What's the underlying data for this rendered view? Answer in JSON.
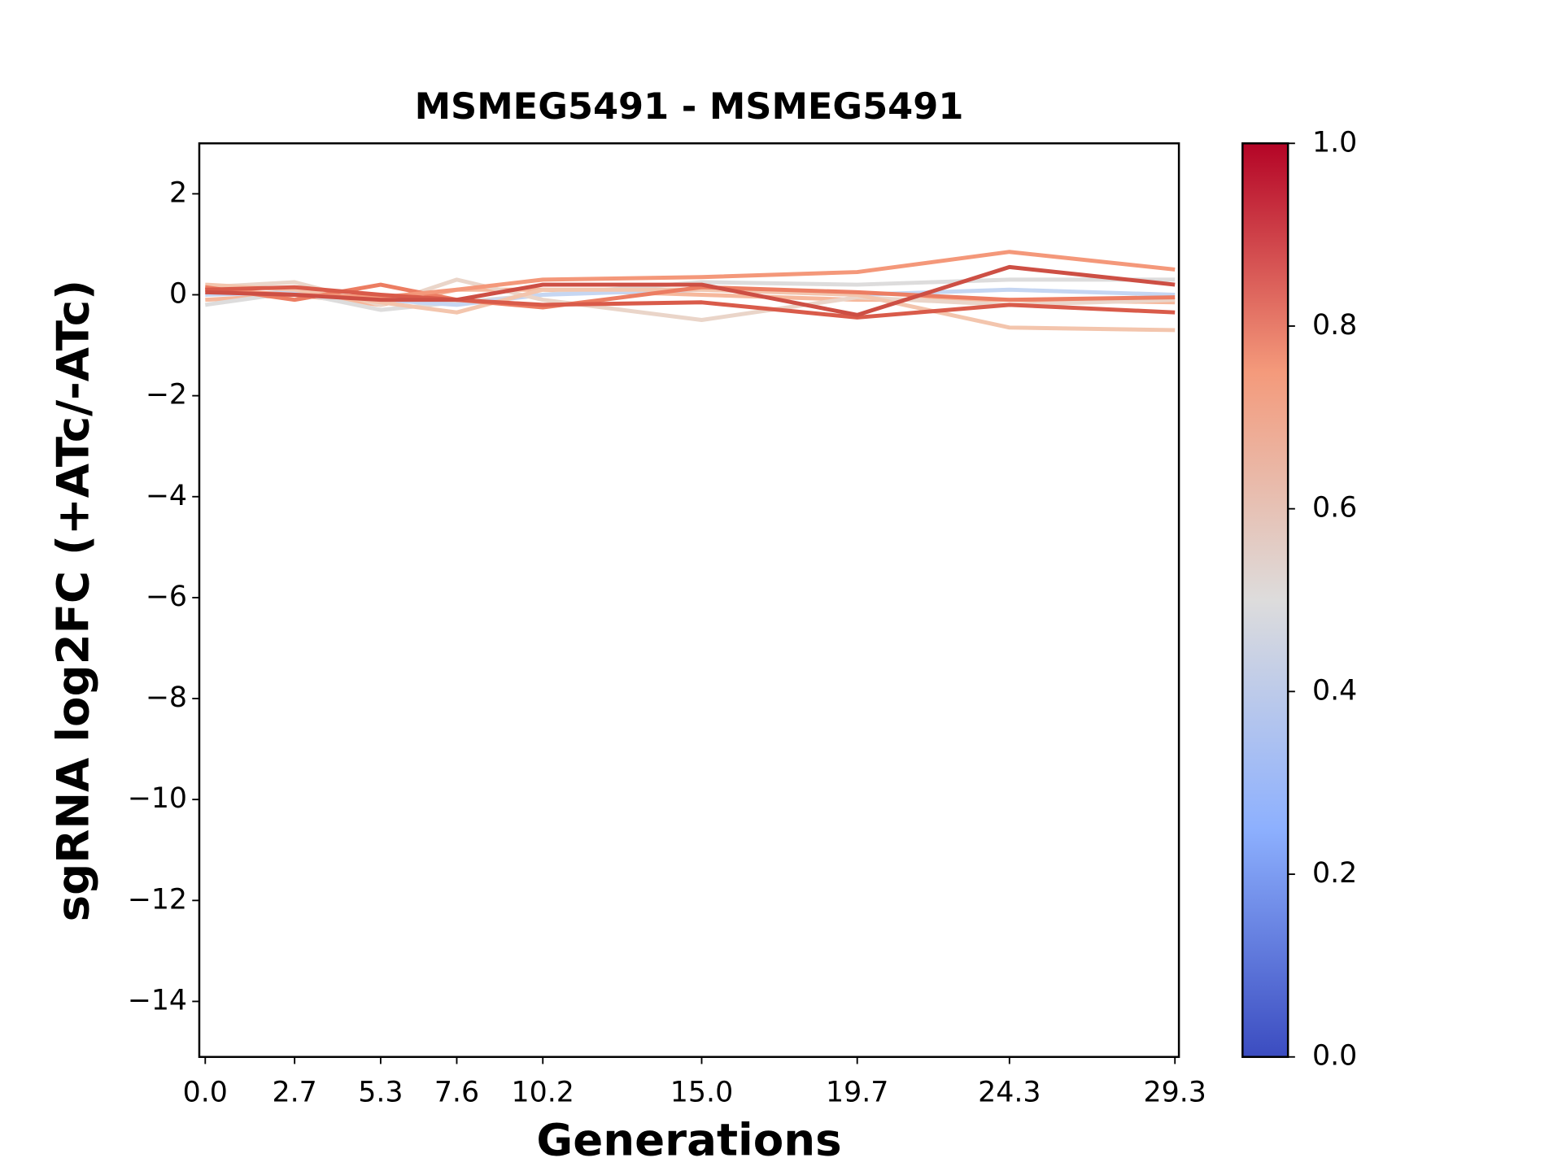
{
  "chart_data": {
    "type": "line",
    "title": "MSMEG5491 - MSMEG5491",
    "xlabel": "Generations",
    "ylabel": "sgRNA log2FC (+ATc/-ATc)",
    "x": [
      0,
      2.7,
      5.3,
      7.6,
      10.2,
      15,
      19.7,
      24.3,
      29.3
    ],
    "xlim": [
      -0.18,
      29.42
    ],
    "xticks": [
      {
        "value": 0,
        "label": "0.0"
      },
      2.7,
      5.3,
      7.6,
      10.2,
      {
        "value": 15,
        "label": "15.0"
      },
      19.7,
      24.3,
      29.3
    ],
    "ylim": [
      -15.1,
      3
    ],
    "yticks": [
      {
        "value": 2,
        "label": "2"
      },
      {
        "value": 0,
        "label": "0"
      },
      {
        "value": -2,
        "label": "−2"
      },
      {
        "value": -4,
        "label": "−4"
      },
      {
        "value": -6,
        "label": "−6"
      },
      {
        "value": -8,
        "label": "−8"
      },
      {
        "value": -10,
        "label": "−10"
      },
      {
        "value": -12,
        "label": "−12"
      },
      {
        "value": -14,
        "label": "−14"
      }
    ],
    "series": [
      {
        "color": "#f6b89c",
        "values": [
          -0.1,
          0.0,
          -0.2,
          0.1,
          0.1,
          0.0,
          -0.1,
          -0.1,
          -0.15
        ]
      },
      {
        "color": "#dddcdc",
        "values": [
          -0.2,
          0.05,
          -0.3,
          -0.15,
          0.0,
          0.25,
          0.2,
          0.3,
          0.3
        ]
      },
      {
        "color": "#c5d6f2",
        "values": [
          0.0,
          0.05,
          -0.1,
          -0.2,
          0.0,
          0.1,
          0.0,
          0.1,
          0.0
        ]
      },
      {
        "color": "#ead5c9",
        "values": [
          0.15,
          0.25,
          -0.2,
          0.3,
          -0.1,
          -0.5,
          -0.05,
          -0.2,
          -0.1
        ]
      },
      {
        "color": "#f3c5ad",
        "values": [
          0.2,
          0.1,
          -0.15,
          -0.35,
          0.1,
          0.1,
          0.0,
          -0.65,
          -0.7
        ]
      },
      {
        "color": "#ec7d62",
        "values": [
          0.15,
          -0.1,
          0.2,
          -0.1,
          -0.25,
          0.15,
          0.05,
          -0.1,
          -0.05
        ]
      },
      {
        "color": "#f4987a",
        "values": [
          0.1,
          0.0,
          -0.05,
          0.1,
          0.3,
          0.35,
          0.45,
          0.85,
          0.5
        ]
      },
      {
        "color": "#d95b4a",
        "values": [
          0.1,
          0.15,
          0.0,
          -0.1,
          -0.2,
          -0.15,
          -0.45,
          -0.2,
          -0.35
        ]
      },
      {
        "color": "#cd4f44",
        "values": [
          0.05,
          0.0,
          -0.1,
          -0.1,
          0.2,
          0.2,
          -0.4,
          0.55,
          0.2
        ]
      }
    ],
    "colorbar": {
      "lim": [
        0,
        1
      ],
      "ticks": [
        {
          "value": 0,
          "label": "0.0"
        },
        0.2,
        0.4,
        0.6,
        0.8,
        {
          "value": 1,
          "label": "1.0"
        }
      ]
    }
  }
}
